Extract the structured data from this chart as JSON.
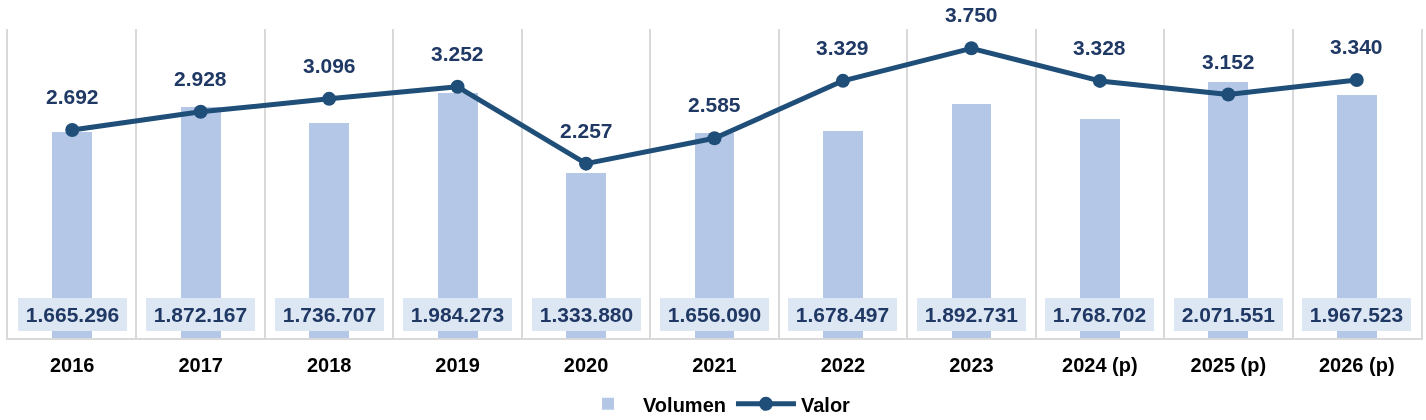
{
  "chart_data": {
    "type": "bar",
    "categories": [
      "2016",
      "2017",
      "2018",
      "2019",
      "2020",
      "2021",
      "2022",
      "2023",
      "2024 (p)",
      "2025 (p)",
      "2026 (p)"
    ],
    "series": [
      {
        "name": "Volumen",
        "color": "#b4c7e7",
        "values": [
          1665296,
          1872167,
          1736707,
          1984273,
          1333880,
          1656090,
          1678497,
          1892731,
          1768702,
          2071551,
          1967523
        ],
        "value_labels": [
          "1.665.296",
          "1.872.167",
          "1.736.707",
          "1.984.273",
          "1.333.880",
          "1.656.090",
          "1.678.497",
          "1.892.731",
          "1.768.702",
          "2.071.551",
          "1.967.523"
        ]
      },
      {
        "name": "Valor",
        "type": "line",
        "axis": "y2",
        "color": "#1f4e79",
        "values": [
          2692,
          2928,
          3096,
          3252,
          2257,
          2585,
          3329,
          3750,
          3328,
          3152,
          3340
        ],
        "value_labels": [
          "2.692",
          "2.928",
          "3.096",
          "3.252",
          "2.257",
          "2.585",
          "3.329",
          "3.750",
          "3.328",
          "3.152",
          "3.340"
        ]
      }
    ],
    "ylim": [
      0,
      2500000
    ],
    "y2lim": [
      0,
      4000
    ],
    "tick_labels": "x",
    "grid": "x",
    "legend": "bottom",
    "marker": "circle",
    "line_style": "solid"
  }
}
